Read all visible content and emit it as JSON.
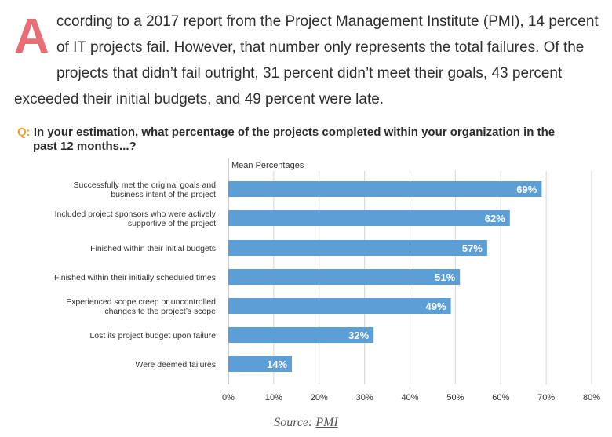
{
  "intro": {
    "dropcap": "A",
    "line1_pre": "ccording to a 2017 report from the Project Management Institute (PMI), ",
    "line1_link": "14 percent",
    "line2_link": "of IT projects fail",
    "line2_post": ". However, that number only represents the total failures. Of the",
    "line3": "projects that didn’t fail outright, 31 percent didn’t meet their goals, 43 percent",
    "line4": "exceeded their initial budgets, and 49 percent were late."
  },
  "chart_data": {
    "type": "bar",
    "orientation": "horizontal",
    "title_prefix": "Q:",
    "title_line1": "In your estimation, what percentage of the projects completed within your organization in the",
    "title_line2": "past 12 months...?",
    "series_label": "Mean Percentages",
    "categories": [
      [
        "Successfully met the original goals and",
        "business intent of the project"
      ],
      [
        "Included project sponsors who were actively",
        "supportive of the project"
      ],
      [
        "Finished within their initial budgets"
      ],
      [
        "Finished within their initially scheduled times"
      ],
      [
        "Experienced scope creep or uncontrolled",
        "changes to the project’s scope"
      ],
      [
        "Lost its project budget upon failure"
      ],
      [
        "Were deemed failures"
      ]
    ],
    "values": [
      69,
      62,
      57,
      51,
      49,
      32,
      14
    ],
    "value_labels": [
      "69%",
      "62%",
      "57%",
      "51%",
      "49%",
      "32%",
      "14%"
    ],
    "xlim": [
      0,
      80
    ],
    "xticks": [
      0,
      10,
      20,
      30,
      40,
      50,
      60,
      70,
      80
    ],
    "xtick_labels": [
      "0%",
      "10%",
      "20%",
      "30%",
      "40%",
      "50%",
      "60%",
      "70%",
      "80%"
    ],
    "bar_color": "#5b9fd6",
    "grid_color": "#d5d5d5"
  },
  "source": {
    "prefix": "Source: ",
    "link": "PMI"
  }
}
